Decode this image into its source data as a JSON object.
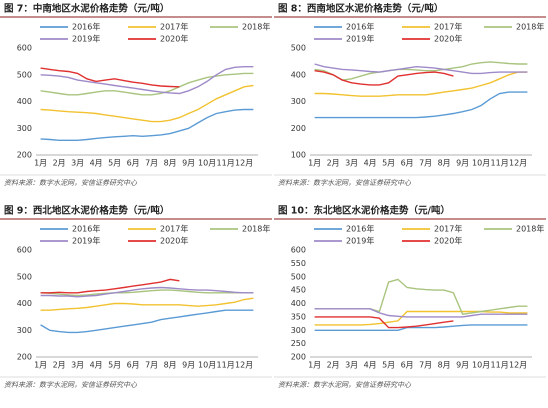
{
  "chart_data": [
    {
      "type": "line",
      "title": "图 7：中南地区水泥价格走势（元/吨）",
      "source": "资料来源：数字水泥网，安信证券研究中心",
      "categories": [
        "1月",
        null,
        "2月",
        null,
        "3月",
        null,
        "4月",
        null,
        "5月",
        null,
        "6月",
        null,
        "7月",
        null,
        "8月",
        null,
        "9月",
        null,
        "10月",
        null,
        "11月",
        null,
        "12月",
        null
      ],
      "ylim": [
        200,
        600
      ],
      "yticks": [
        200,
        300,
        400,
        500,
        600
      ],
      "grid": false,
      "series": [
        {
          "name": "2016年",
          "color": "#5b9bd5",
          "values": [
            260,
            258,
            255,
            255,
            255,
            258,
            262,
            265,
            268,
            270,
            272,
            270,
            272,
            275,
            280,
            290,
            300,
            320,
            340,
            355,
            362,
            368,
            370,
            370
          ]
        },
        {
          "name": "2017年",
          "color": "#f2c230",
          "values": [
            370,
            368,
            365,
            362,
            360,
            358,
            355,
            350,
            345,
            340,
            335,
            330,
            325,
            325,
            330,
            340,
            355,
            370,
            390,
            410,
            425,
            440,
            455,
            460
          ]
        },
        {
          "name": "2018年",
          "color": "#a9c47f",
          "values": [
            440,
            435,
            430,
            425,
            425,
            430,
            435,
            440,
            440,
            435,
            430,
            425,
            425,
            430,
            440,
            455,
            470,
            480,
            490,
            495,
            500,
            502,
            505,
            505
          ]
        },
        {
          "name": "2019年",
          "color": "#9e8ac8",
          "values": [
            500,
            498,
            495,
            490,
            480,
            475,
            470,
            465,
            460,
            455,
            450,
            445,
            440,
            435,
            432,
            430,
            440,
            455,
            475,
            500,
            520,
            528,
            530,
            530
          ]
        },
        {
          "name": "2020年",
          "color": "#e03030",
          "values": [
            525,
            520,
            515,
            512,
            505,
            485,
            475,
            480,
            485,
            478,
            472,
            468,
            462,
            458,
            456,
            455,
            null,
            null,
            null,
            null,
            null,
            null,
            null,
            null
          ]
        }
      ]
    },
    {
      "type": "line",
      "title": "图 8：西南地区水泥价格走势（元/吨）",
      "source": "资料来源：数字水泥网，安信证券研究中心",
      "categories": [
        "1月",
        null,
        "2月",
        null,
        "3月",
        null,
        "4月",
        null,
        "5月",
        null,
        "6月",
        null,
        "7月",
        null,
        "8月",
        null,
        "9月",
        null,
        "10月",
        null,
        "11月",
        null,
        "12月",
        null
      ],
      "ylim": [
        100,
        500
      ],
      "yticks": [
        100,
        200,
        300,
        400,
        500
      ],
      "grid": false,
      "series": [
        {
          "name": "2016年",
          "color": "#5b9bd5",
          "values": [
            240,
            240,
            240,
            240,
            240,
            240,
            240,
            240,
            240,
            240,
            240,
            240,
            242,
            245,
            250,
            255,
            262,
            270,
            285,
            310,
            330,
            335,
            335,
            335
          ]
        },
        {
          "name": "2017年",
          "color": "#f2c230",
          "values": [
            330,
            330,
            328,
            325,
            322,
            320,
            320,
            320,
            322,
            325,
            325,
            325,
            325,
            330,
            335,
            340,
            345,
            350,
            360,
            370,
            385,
            400,
            410,
            410
          ]
        },
        {
          "name": "2018年",
          "color": "#a9c47f",
          "values": [
            420,
            415,
            400,
            380,
            385,
            395,
            405,
            410,
            415,
            420,
            420,
            418,
            415,
            415,
            420,
            425,
            430,
            440,
            445,
            448,
            445,
            442,
            440,
            440
          ]
        },
        {
          "name": "2019年",
          "color": "#9e8ac8",
          "values": [
            440,
            430,
            425,
            420,
            418,
            415,
            412,
            410,
            415,
            420,
            425,
            430,
            428,
            425,
            420,
            415,
            410,
            405,
            405,
            408,
            410,
            410,
            410,
            410
          ]
        },
        {
          "name": "2020年",
          "color": "#e03030",
          "values": [
            415,
            410,
            400,
            380,
            370,
            365,
            362,
            362,
            370,
            395,
            400,
            405,
            408,
            410,
            405,
            395,
            null,
            null,
            null,
            null,
            null,
            null,
            null,
            null
          ]
        }
      ]
    },
    {
      "type": "line",
      "title": "图 9：西北地区水泥价格走势（元/吨）",
      "source": "资料来源：数字水泥网，安信证券研究中心",
      "categories": [
        "1月",
        null,
        "2月",
        null,
        "3月",
        null,
        "4月",
        null,
        "5月",
        null,
        "6月",
        null,
        "7月",
        null,
        "8月",
        null,
        "9月",
        null,
        "10月",
        null,
        "11月",
        null,
        "12月",
        null
      ],
      "ylim": [
        200,
        600
      ],
      "yticks": [
        200,
        300,
        400,
        500,
        600
      ],
      "grid": false,
      "series": [
        {
          "name": "2016年",
          "color": "#5b9bd5",
          "values": [
            320,
            300,
            295,
            292,
            292,
            295,
            300,
            305,
            310,
            315,
            320,
            325,
            330,
            340,
            345,
            350,
            355,
            360,
            365,
            370,
            375,
            375,
            375,
            375
          ]
        },
        {
          "name": "2017年",
          "color": "#f2c230",
          "values": [
            375,
            375,
            378,
            380,
            382,
            385,
            390,
            395,
            400,
            400,
            398,
            395,
            395,
            395,
            395,
            395,
            392,
            390,
            392,
            395,
            400,
            405,
            415,
            420
          ]
        },
        {
          "name": "2018年",
          "color": "#a9c47f",
          "values": [
            440,
            438,
            435,
            432,
            430,
            432,
            435,
            438,
            440,
            440,
            442,
            445,
            448,
            450,
            450,
            448,
            445,
            442,
            440,
            440,
            440,
            440,
            440,
            440
          ]
        },
        {
          "name": "2019年",
          "color": "#9e8ac8",
          "values": [
            430,
            430,
            428,
            428,
            425,
            428,
            430,
            435,
            440,
            445,
            450,
            455,
            458,
            460,
            458,
            455,
            452,
            450,
            450,
            448,
            445,
            442,
            440,
            440
          ]
        },
        {
          "name": "2020年",
          "color": "#e03030",
          "values": [
            440,
            440,
            442,
            440,
            440,
            445,
            448,
            450,
            455,
            460,
            465,
            470,
            475,
            480,
            490,
            485,
            null,
            null,
            null,
            null,
            null,
            null,
            null,
            null
          ]
        }
      ]
    },
    {
      "type": "line",
      "title": "图 10：东北地区水泥价格走势（元/吨）",
      "source": "资料来源：数字水泥网，安信证券研究中心",
      "categories": [
        "1月",
        null,
        "2月",
        null,
        "3月",
        null,
        "4月",
        null,
        "5月",
        null,
        "6月",
        null,
        "7月",
        null,
        "8月",
        null,
        "9月",
        null,
        "10月",
        null,
        "11月",
        null,
        "12月",
        null
      ],
      "ylim": [
        200,
        600
      ],
      "yticks": [
        200,
        250,
        300,
        350,
        400,
        450,
        500,
        550,
        600
      ],
      "grid": false,
      "series": [
        {
          "name": "2016年",
          "color": "#5b9bd5",
          "values": [
            300,
            300,
            300,
            300,
            300,
            300,
            300,
            300,
            300,
            300,
            310,
            310,
            310,
            310,
            312,
            315,
            318,
            320,
            320,
            320,
            320,
            320,
            320,
            320
          ]
        },
        {
          "name": "2017年",
          "color": "#f2c230",
          "values": [
            320,
            320,
            320,
            320,
            320,
            320,
            322,
            325,
            330,
            335,
            370,
            370,
            370,
            370,
            370,
            370,
            370,
            370,
            370,
            368,
            368,
            365,
            365,
            365
          ]
        },
        {
          "name": "2018年",
          "color": "#a9c47f",
          "values": [
            380,
            380,
            380,
            380,
            380,
            380,
            380,
            370,
            480,
            490,
            460,
            455,
            452,
            450,
            450,
            440,
            360,
            365,
            370,
            375,
            380,
            385,
            390,
            390
          ]
        },
        {
          "name": "2019年",
          "color": "#9e8ac8",
          "values": [
            380,
            380,
            380,
            380,
            380,
            380,
            380,
            365,
            355,
            352,
            350,
            350,
            350,
            350,
            350,
            350,
            350,
            355,
            360,
            360,
            360,
            360,
            360,
            360
          ]
        },
        {
          "name": "2020年",
          "color": "#e03030",
          "values": [
            350,
            350,
            350,
            350,
            350,
            350,
            350,
            345,
            310,
            310,
            312,
            315,
            320,
            325,
            330,
            335,
            null,
            null,
            null,
            null,
            null,
            null,
            null,
            null
          ]
        }
      ]
    }
  ]
}
